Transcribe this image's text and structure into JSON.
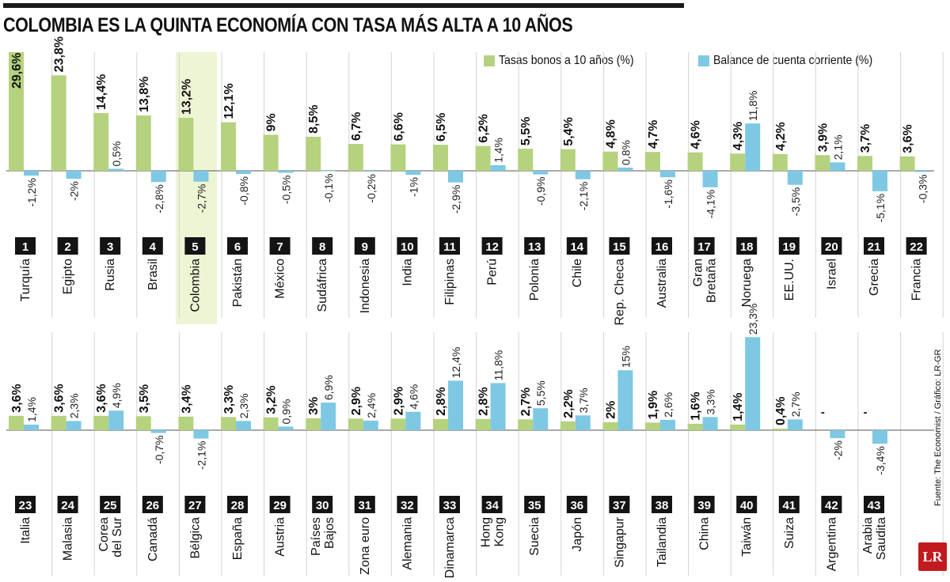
{
  "title": "COLOMBIA ES LA QUINTA ECONOMÍA CON TASA MÁS ALTA A 10 AÑOS",
  "source": "Fuente: The Economist / Gráfico: LR-GR",
  "logo": "LR",
  "colors": {
    "bond": "#b5d27e",
    "account": "#7ec8e3",
    "highlight": "#eef5d4",
    "rank_bg": "#141414"
  },
  "chart_data": {
    "type": "bar",
    "legend_placement": "top-right",
    "series": [
      {
        "name": "Tasas bonos a 10 años (%)",
        "color": "#b5d27e"
      },
      {
        "name": "Balance de cuenta corriente (%)",
        "color": "#7ec8e3"
      }
    ],
    "highlighted_rank": 5,
    "countries": [
      {
        "rank": 1,
        "name": [
          "Turquía"
        ],
        "bond": 29.6,
        "bond_label": "29,6%",
        "account": -1.2,
        "account_label": "-1,2%"
      },
      {
        "rank": 2,
        "name": [
          "Egipto"
        ],
        "bond": 23.8,
        "bond_label": "23,8%",
        "account": -2,
        "account_label": "-2%"
      },
      {
        "rank": 3,
        "name": [
          "Rusia"
        ],
        "bond": 14.4,
        "bond_label": "14,4%",
        "account": 0.5,
        "account_label": "0,5%"
      },
      {
        "rank": 4,
        "name": [
          "Brasil"
        ],
        "bond": 13.8,
        "bond_label": "13,8%",
        "account": -2.8,
        "account_label": "-2,8%"
      },
      {
        "rank": 5,
        "name": [
          "Colombia"
        ],
        "bond": 13.2,
        "bond_label": "13,2%",
        "account": -2.7,
        "account_label": "-2,7%"
      },
      {
        "rank": 6,
        "name": [
          "Pakistán"
        ],
        "bond": 12.1,
        "bond_label": "12,1%",
        "account": -0.8,
        "account_label": "-0,8%"
      },
      {
        "rank": 7,
        "name": [
          "México"
        ],
        "bond": 9,
        "bond_label": "9%",
        "account": -0.5,
        "account_label": "-0,5%"
      },
      {
        "rank": 8,
        "name": [
          "Sudáfrica"
        ],
        "bond": 8.5,
        "bond_label": "8,5%",
        "account": -0.1,
        "account_label": "-0,1%"
      },
      {
        "rank": 9,
        "name": [
          "Indonesia"
        ],
        "bond": 6.7,
        "bond_label": "6,7%",
        "account": -0.2,
        "account_label": "-0,2%"
      },
      {
        "rank": 10,
        "name": [
          "India"
        ],
        "bond": 6.6,
        "bond_label": "6,6%",
        "account": -1,
        "account_label": "-1%"
      },
      {
        "rank": 11,
        "name": [
          "Filipinas"
        ],
        "bond": 6.5,
        "bond_label": "6,5%",
        "account": -2.9,
        "account_label": "-2,9%"
      },
      {
        "rank": 12,
        "name": [
          "Perú"
        ],
        "bond": 6.2,
        "bond_label": "6,2%",
        "account": 1.4,
        "account_label": "1,4%"
      },
      {
        "rank": 13,
        "name": [
          "Polonia"
        ],
        "bond": 5.5,
        "bond_label": "5,5%",
        "account": -0.9,
        "account_label": "-0,9%"
      },
      {
        "rank": 14,
        "name": [
          "Chile"
        ],
        "bond": 5.4,
        "bond_label": "5,4%",
        "account": -2.1,
        "account_label": "-2,1%"
      },
      {
        "rank": 15,
        "name": [
          "Rep. Checa"
        ],
        "bond": 4.8,
        "bond_label": "4,8%",
        "account": 0.8,
        "account_label": "0,8%"
      },
      {
        "rank": 16,
        "name": [
          "Australia"
        ],
        "bond": 4.7,
        "bond_label": "4,7%",
        "account": -1.6,
        "account_label": "-1,6%"
      },
      {
        "rank": 17,
        "name": [
          "Gran",
          "Bretaña"
        ],
        "bond": 4.6,
        "bond_label": "4,6%",
        "account": -4.1,
        "account_label": "-4,1%"
      },
      {
        "rank": 18,
        "name": [
          "Noruega"
        ],
        "bond": 4.3,
        "bond_label": "4,3%",
        "account": 11.8,
        "account_label": "11,8%"
      },
      {
        "rank": 19,
        "name": [
          "EE.UU."
        ],
        "bond": 4.2,
        "bond_label": "4,2%",
        "account": -3.5,
        "account_label": "-3,5%"
      },
      {
        "rank": 20,
        "name": [
          "Israel"
        ],
        "bond": 3.9,
        "bond_label": "3,9%",
        "account": 2.1,
        "account_label": "2,1%"
      },
      {
        "rank": 21,
        "name": [
          "Grecia"
        ],
        "bond": 3.7,
        "bond_label": "3,7%",
        "account": -5.1,
        "account_label": "-5,1%"
      },
      {
        "rank": 22,
        "name": [
          "Francia"
        ],
        "bond": 3.6,
        "bond_label": "3,6%",
        "account": -0.3,
        "account_label": "-0,3%"
      },
      {
        "rank": 23,
        "name": [
          "Italia"
        ],
        "bond": 3.6,
        "bond_label": "3,6%",
        "account": 1.4,
        "account_label": "1,4%"
      },
      {
        "rank": 24,
        "name": [
          "Malasia"
        ],
        "bond": 3.6,
        "bond_label": "3,6%",
        "account": 2.3,
        "account_label": "2,3%"
      },
      {
        "rank": 25,
        "name": [
          "Corea",
          "del Sur"
        ],
        "bond": 3.6,
        "bond_label": "3,6%",
        "account": 4.9,
        "account_label": "4,9%"
      },
      {
        "rank": 26,
        "name": [
          "Canadá"
        ],
        "bond": 3.5,
        "bond_label": "3,5%",
        "account": -0.7,
        "account_label": "-0,7%"
      },
      {
        "rank": 27,
        "name": [
          "Bélgica"
        ],
        "bond": 3.4,
        "bond_label": "3,4%",
        "account": -2.1,
        "account_label": "-2,1%"
      },
      {
        "rank": 28,
        "name": [
          "España"
        ],
        "bond": 3.3,
        "bond_label": "3,3%",
        "account": 2.3,
        "account_label": "2,3%"
      },
      {
        "rank": 29,
        "name": [
          "Austria"
        ],
        "bond": 3.2,
        "bond_label": "3,2%",
        "account": 0.9,
        "account_label": "0,9%"
      },
      {
        "rank": 30,
        "name": [
          "Países",
          "Bajos"
        ],
        "bond": 3,
        "bond_label": "3%",
        "account": 6.9,
        "account_label": "6,9%"
      },
      {
        "rank": 31,
        "name": [
          "Zona euro"
        ],
        "bond": 2.9,
        "bond_label": "2,9%",
        "account": 2.4,
        "account_label": "2,4%"
      },
      {
        "rank": 32,
        "name": [
          "Alemania"
        ],
        "bond": 2.9,
        "bond_label": "2,9%",
        "account": 4.6,
        "account_label": "4,6%"
      },
      {
        "rank": 33,
        "name": [
          "Dinamarca"
        ],
        "bond": 2.8,
        "bond_label": "2,8%",
        "account": 12.4,
        "account_label": "12,4%"
      },
      {
        "rank": 34,
        "name": [
          "Hong",
          "Kong"
        ],
        "bond": 2.8,
        "bond_label": "2,8%",
        "account": 11.8,
        "account_label": "11,8%"
      },
      {
        "rank": 35,
        "name": [
          "Suecia"
        ],
        "bond": 2.7,
        "bond_label": "2,7%",
        "account": 5.5,
        "account_label": "5,5%"
      },
      {
        "rank": 36,
        "name": [
          "Japón"
        ],
        "bond": 2.2,
        "bond_label": "2,2%",
        "account": 3.7,
        "account_label": "3,7%"
      },
      {
        "rank": 37,
        "name": [
          "Singapur"
        ],
        "bond": 2,
        "bond_label": "2%",
        "account": 15,
        "account_label": "15%"
      },
      {
        "rank": 38,
        "name": [
          "Tailandia"
        ],
        "bond": 1.9,
        "bond_label": "1,9%",
        "account": 2.6,
        "account_label": "2,6%"
      },
      {
        "rank": 39,
        "name": [
          "China"
        ],
        "bond": 1.6,
        "bond_label": "1,6%",
        "account": 3.3,
        "account_label": "3,3%"
      },
      {
        "rank": 40,
        "name": [
          "Taiwán"
        ],
        "bond": 1.4,
        "bond_label": "1,4%",
        "account": 23.3,
        "account_label": "23,3%"
      },
      {
        "rank": 41,
        "name": [
          "Suiza"
        ],
        "bond": 0.4,
        "bond_label": "0,4%",
        "account": 2.7,
        "account_label": "2,7%"
      },
      {
        "rank": 42,
        "name": [
          "Argentina"
        ],
        "bond": null,
        "bond_label": "-",
        "account": -2,
        "account_label": "-2%"
      },
      {
        "rank": 43,
        "name": [
          "Arabia",
          "Saudita"
        ],
        "bond": null,
        "bond_label": "-",
        "account": -3.4,
        "account_label": "-3,4%"
      }
    ]
  }
}
